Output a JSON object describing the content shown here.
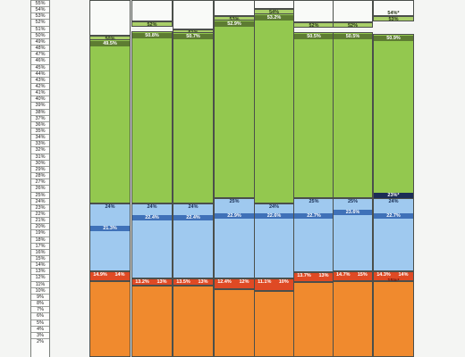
{
  "scale_labels": [
    "55%",
    "54%",
    "53%",
    "52%",
    "51%",
    "50%",
    "49%",
    "48%",
    "47%",
    "46%",
    "45%",
    "44%",
    "43%",
    "42%",
    "41%",
    "40%",
    "39%",
    "38%",
    "37%",
    "36%",
    "35%",
    "34%",
    "33%",
    "32%",
    "31%",
    "30%",
    "29%",
    "28%",
    "27%",
    "26%",
    "25%",
    "24%",
    "23%",
    "22%",
    "21%",
    "20%",
    "19%",
    "18%",
    "17%",
    "16%",
    "15%",
    "14%",
    "13%",
    "12%",
    "11%",
    "10%",
    "9%",
    "8%",
    "7%",
    "6%",
    "5%",
    "4%",
    "3%",
    "2%"
  ],
  "columns": [
    {
      "labels": {
        "green_top": "50%",
        "green_mid": "49.5%",
        "blue_top": "24%",
        "blue_mid": "21.3%",
        "red_left": "14.9%",
        "red_right": "14%"
      }
    },
    {
      "labels": {
        "green_top": "52%",
        "green_mid": "50.8%",
        "blue_top": "24%",
        "blue_mid": "22.4%",
        "red_left": "13.2%",
        "red_right": "13%"
      }
    },
    {
      "labels": {
        "green_top": "51%",
        "green_mid": "50.7%",
        "blue_top": "24%",
        "blue_mid": "22.4%",
        "red_left": "13.5%",
        "red_right": "13%"
      }
    },
    {
      "labels": {
        "green_top": "53%",
        "green_mid": "52.9%",
        "blue_top": "25%",
        "blue_mid": "22.9%",
        "red_left": "12.4%",
        "red_right": "12%"
      }
    },
    {
      "labels": {
        "green_top": "54%",
        "green_mid": "53.2%",
        "blue_top": "24%",
        "blue_mid": "22.6%",
        "red_left": "11.1%",
        "red_right": "10%"
      }
    },
    {
      "labels": {
        "green_top": "52%",
        "green_mid": "50.5%",
        "blue_top": "25%",
        "blue_mid": "22.7%",
        "red_left": "13.7%",
        "red_right": "13%"
      }
    },
    {
      "labels": {
        "green_top": "52%",
        "green_mid": "50.5%",
        "blue_top": "25%",
        "blue_mid": "23.6%",
        "red_left": "14.7%",
        "red_right": "15%"
      }
    },
    {
      "labels": {
        "green_top": "53%",
        "green_mid": "50.9%",
        "green_cap": "54%*",
        "blue_top": "24%",
        "blue_mid": "22.7%",
        "blue_dark": "23%*",
        "red_left": "14.3%",
        "red_right": "14%",
        "red_mid": "15%*"
      }
    }
  ]
}
